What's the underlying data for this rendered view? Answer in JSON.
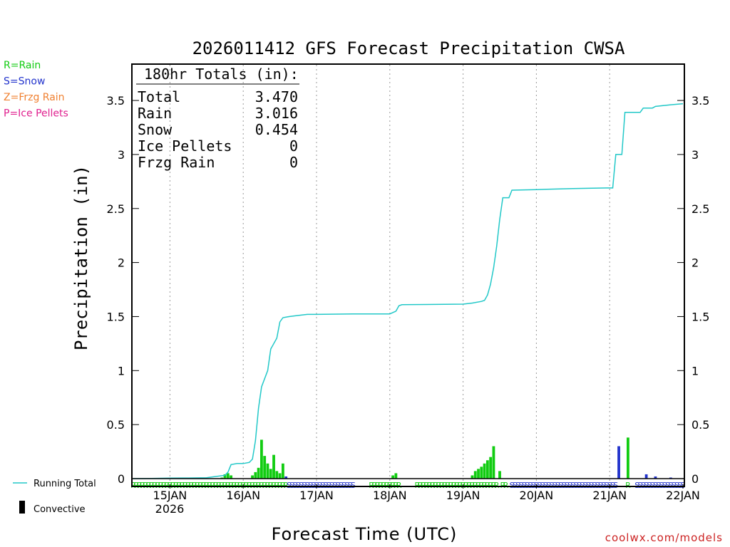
{
  "colors": {
    "rain": "#11cc11",
    "snow": "#2233cc",
    "frzg": "#f08030",
    "ice": "#e0208f",
    "total": "#22c8c8",
    "convective": "#000000",
    "credit": "#cc2222"
  },
  "legend": {
    "types": [
      {
        "key": "rain",
        "label": "R=Rain",
        "color": "#11cc11"
      },
      {
        "key": "snow",
        "label": "S=Snow",
        "color": "#2233cc"
      },
      {
        "key": "frzg",
        "label": "Z=Frzg Rain",
        "color": "#f08030"
      },
      {
        "key": "ice",
        "label": "P=Ice Pellets",
        "color": "#e0208f"
      }
    ],
    "running_total": "Running Total",
    "convective": "Convective"
  },
  "credit": "coolwx.com/models",
  "chart_data": {
    "type": "bar",
    "title": "2026011412 GFS Forecast Precipitation CWSA",
    "xlabel": "Forecast Time (UTC)",
    "ylabel": "Precipitation (in)",
    "ylim": [
      0,
      3.8
    ],
    "yticks": [
      0,
      0.5,
      1,
      1.5,
      2,
      2.5,
      3,
      3.5
    ],
    "ytick_labels": [
      "0",
      "0.5",
      "1",
      "1.5",
      "2",
      "2.5",
      "3",
      "3.5"
    ],
    "x_unit": "forecast hour",
    "xlim": [
      0,
      180
    ],
    "date_ticks": [
      {
        "label": "15JAN",
        "hour": 12
      },
      {
        "label": "16JAN",
        "hour": 36
      },
      {
        "label": "17JAN",
        "hour": 60
      },
      {
        "label": "18JAN",
        "hour": 84
      },
      {
        "label": "19JAN",
        "hour": 108
      },
      {
        "label": "20JAN",
        "hour": 132
      },
      {
        "label": "21JAN",
        "hour": 156
      },
      {
        "label": "22JAN",
        "hour": 180
      }
    ],
    "year_label": "2026",
    "totals_box": {
      "header": "180hr Totals (in):",
      "rows": [
        {
          "label": "Total",
          "value": "3.470"
        },
        {
          "label": "Rain",
          "value": "3.016"
        },
        {
          "label": "Snow",
          "value": "0.454"
        },
        {
          "label": "Ice Pellets",
          "value": "0"
        },
        {
          "label": "Frzg Rain",
          "value": "0"
        }
      ]
    },
    "series": [
      {
        "name": "Running Total",
        "kind": "line",
        "points": [
          [
            0,
            0
          ],
          [
            6,
            0.002
          ],
          [
            12,
            0.005
          ],
          [
            18,
            0.006
          ],
          [
            24,
            0.008
          ],
          [
            27,
            0.02
          ],
          [
            30,
            0.03
          ],
          [
            31,
            0.06
          ],
          [
            32,
            0.13
          ],
          [
            34,
            0.14
          ],
          [
            36,
            0.14
          ],
          [
            38,
            0.15
          ],
          [
            39,
            0.18
          ],
          [
            40,
            0.35
          ],
          [
            41,
            0.65
          ],
          [
            42,
            0.85
          ],
          [
            44,
            1.0
          ],
          [
            45,
            1.2
          ],
          [
            47,
            1.3
          ],
          [
            48,
            1.45
          ],
          [
            49,
            1.49
          ],
          [
            51,
            1.5
          ],
          [
            54,
            1.51
          ],
          [
            57,
            1.52
          ],
          [
            60,
            1.52
          ],
          [
            72,
            1.525
          ],
          [
            84,
            1.525
          ],
          [
            86,
            1.55
          ],
          [
            87,
            1.6
          ],
          [
            88,
            1.61
          ],
          [
            96,
            1.612
          ],
          [
            108,
            1.615
          ],
          [
            111,
            1.625
          ],
          [
            114,
            1.64
          ],
          [
            115,
            1.65
          ],
          [
            116,
            1.7
          ],
          [
            117,
            1.8
          ],
          [
            118,
            1.95
          ],
          [
            119,
            2.15
          ],
          [
            120,
            2.4
          ],
          [
            121,
            2.6
          ],
          [
            123,
            2.6
          ],
          [
            124,
            2.67
          ],
          [
            132,
            2.675
          ],
          [
            144,
            2.685
          ],
          [
            155,
            2.69
          ],
          [
            157,
            2.69
          ],
          [
            158,
            3.0
          ],
          [
            160,
            3.0
          ],
          [
            161,
            3.39
          ],
          [
            166,
            3.39
          ],
          [
            167,
            3.43
          ],
          [
            170,
            3.43
          ],
          [
            171,
            3.445
          ],
          [
            176,
            3.46
          ],
          [
            180,
            3.47
          ]
        ]
      },
      {
        "name": "Rain",
        "kind": "bar",
        "bars": [
          [
            29,
            0.01
          ],
          [
            30,
            0.04
          ],
          [
            31,
            0.05
          ],
          [
            32,
            0.03
          ],
          [
            39,
            0.03
          ],
          [
            40,
            0.06
          ],
          [
            41,
            0.1
          ],
          [
            42,
            0.36
          ],
          [
            43,
            0.21
          ],
          [
            44,
            0.14
          ],
          [
            45,
            0.09
          ],
          [
            46,
            0.22
          ],
          [
            47,
            0.07
          ],
          [
            48,
            0.05
          ],
          [
            49,
            0.14
          ],
          [
            85,
            0.03
          ],
          [
            86,
            0.05
          ],
          [
            111,
            0.03
          ],
          [
            112,
            0.07
          ],
          [
            113,
            0.09
          ],
          [
            114,
            0.11
          ],
          [
            115,
            0.14
          ],
          [
            116,
            0.17
          ],
          [
            117,
            0.2
          ],
          [
            118,
            0.3
          ],
          [
            120,
            0.07
          ],
          [
            162,
            0.38
          ]
        ]
      },
      {
        "name": "Snow",
        "kind": "bar",
        "bars": [
          [
            50,
            0.02
          ],
          [
            159,
            0.3
          ],
          [
            168,
            0.04
          ],
          [
            171,
            0.02
          ],
          [
            176,
            0.01
          ]
        ]
      }
    ],
    "type_letters": [
      {
        "letter": "R",
        "from": 0,
        "to": 50,
        "color": "rain"
      },
      {
        "letter": "S",
        "from": 51,
        "to": 72,
        "color": "snow"
      },
      {
        "letter": "R",
        "from": 78,
        "to": 87,
        "color": "rain"
      },
      {
        "letter": "R",
        "from": 93,
        "to": 119,
        "color": "rain"
      },
      {
        "letter": "R",
        "from": 121,
        "to": 122,
        "color": "rain"
      },
      {
        "letter": "S",
        "from": 124,
        "to": 158,
        "color": "snow"
      },
      {
        "letter": "R",
        "from": 162,
        "to": 162,
        "color": "rain"
      },
      {
        "letter": "S",
        "from": 165,
        "to": 180,
        "color": "snow"
      }
    ]
  }
}
